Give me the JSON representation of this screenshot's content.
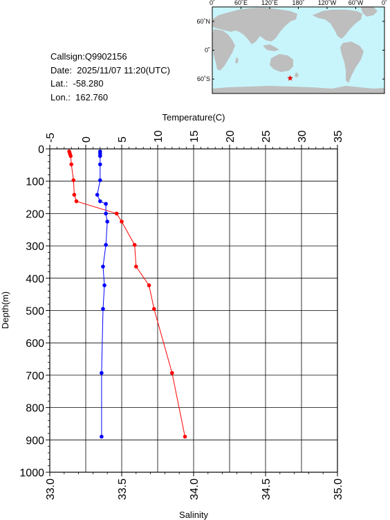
{
  "station": {
    "callsign": "Callsign:Q9902156",
    "date": "Date:  2025/11/07 11:20(UTC)",
    "lat": "Lat.:  -58.280",
    "lon": "Lon.:  162.760"
  },
  "map": {
    "lon_labels": [
      "0˚",
      "60˚E",
      "120˚E",
      "180˚",
      "120˚W",
      "60˚W",
      "0˚"
    ],
    "lat_labels": [
      "60˚N",
      "0˚",
      "60˚S"
    ],
    "ocean_color": "#c8f5fb",
    "land_color": "#bebebe",
    "marker_color": "#e00000",
    "marker": {
      "lat": -58.28,
      "lon": 162.76
    }
  },
  "chart_data": {
    "type": "line",
    "ylabel": "Depth(m)",
    "ylim": [
      0,
      1000
    ],
    "y_ticks": [
      0,
      100,
      200,
      300,
      400,
      500,
      600,
      700,
      800,
      900,
      1000
    ],
    "y_reversed": true,
    "top_axis": {
      "label": "Temperature(C)",
      "range": [
        -5,
        35
      ],
      "ticks": [
        -5,
        0,
        5,
        10,
        15,
        20,
        25,
        30,
        35
      ]
    },
    "bottom_axis": {
      "label": "Salinity",
      "range": [
        33.0,
        35.0
      ],
      "ticks": [
        "33.0",
        "33.5",
        "34.0",
        "34.5",
        "35.0"
      ]
    },
    "grid": true,
    "series": [
      {
        "axis": "top",
        "color": "#ff0000",
        "values": [
          {
            "x": -2.3,
            "y": 8
          },
          {
            "x": -2.2,
            "y": 15
          },
          {
            "x": -2.1,
            "y": 22
          },
          {
            "x": -2.0,
            "y": 48
          },
          {
            "x": -1.7,
            "y": 97
          },
          {
            "x": -1.6,
            "y": 142
          },
          {
            "x": -1.3,
            "y": 162
          },
          {
            "x": 4.3,
            "y": 200
          },
          {
            "x": 5.0,
            "y": 225
          },
          {
            "x": 6.8,
            "y": 297
          },
          {
            "x": 7.0,
            "y": 364
          },
          {
            "x": 8.8,
            "y": 422
          },
          {
            "x": 9.5,
            "y": 495
          },
          {
            "x": 12.0,
            "y": 693
          },
          {
            "x": 13.8,
            "y": 890
          }
        ]
      },
      {
        "axis": "bottom",
        "color": "#0000ff",
        "values": [
          {
            "x": 33.35,
            "y": 8
          },
          {
            "x": 33.35,
            "y": 15
          },
          {
            "x": 33.35,
            "y": 22
          },
          {
            "x": 33.35,
            "y": 48
          },
          {
            "x": 33.35,
            "y": 97
          },
          {
            "x": 33.33,
            "y": 142
          },
          {
            "x": 33.35,
            "y": 162
          },
          {
            "x": 33.39,
            "y": 170
          },
          {
            "x": 33.39,
            "y": 200
          },
          {
            "x": 33.4,
            "y": 225
          },
          {
            "x": 33.39,
            "y": 297
          },
          {
            "x": 33.37,
            "y": 364
          },
          {
            "x": 33.38,
            "y": 422
          },
          {
            "x": 33.37,
            "y": 495
          },
          {
            "x": 33.36,
            "y": 693
          },
          {
            "x": 33.36,
            "y": 890
          }
        ]
      }
    ]
  }
}
